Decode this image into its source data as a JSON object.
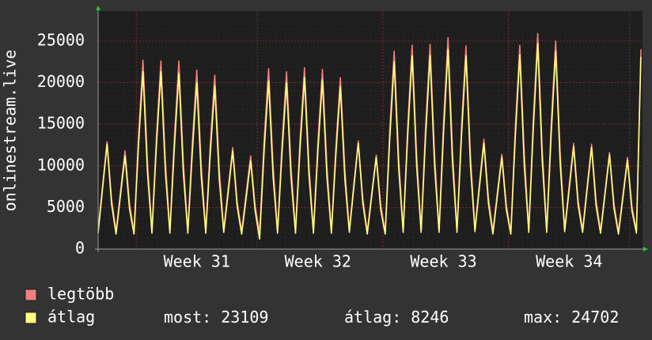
{
  "chart_data": {
    "type": "line",
    "y_label": "onlinestream.live",
    "categories": [
      null,
      null,
      null,
      null,
      null,
      null,
      null,
      null,
      null,
      null,
      null,
      null,
      null,
      null,
      null,
      null,
      null,
      null,
      null,
      null,
      null,
      null,
      "Week 31",
      null,
      null,
      null,
      null,
      null,
      null,
      null,
      null,
      null,
      null,
      null,
      null,
      null,
      null,
      null,
      null,
      null,
      null,
      null,
      null,
      null,
      null,
      null,
      null,
      null,
      null,
      "Week 32",
      null,
      null,
      null,
      null,
      null,
      null,
      null,
      null,
      null,
      null,
      null,
      null,
      null,
      null,
      null,
      null,
      null,
      null,
      null,
      null,
      null,
      null,
      null,
      null,
      null,
      null,
      null,
      "Week 33",
      null,
      null,
      null,
      null,
      null,
      null,
      null,
      null,
      null,
      null,
      null,
      null,
      null,
      null,
      null,
      null,
      null,
      null,
      null,
      null,
      null,
      null,
      null,
      null,
      null,
      null,
      null,
      "Week 34",
      null,
      null,
      null,
      null,
      null,
      null,
      null,
      null,
      null,
      null,
      null,
      null,
      null,
      null,
      null,
      null
    ],
    "series": [
      {
        "name": "legtöbb",
        "color": "#f47f7f",
        "values": [
          2300,
          7700,
          12900,
          6000,
          2100,
          7000,
          11800,
          5500,
          2000,
          13500,
          22700,
          10500,
          2200,
          13500,
          22600,
          10500,
          2200,
          13400,
          22600,
          10400,
          2200,
          12800,
          21500,
          10000,
          2200,
          12500,
          20900,
          9700,
          2300,
          7300,
          12200,
          5700,
          2100,
          6700,
          11200,
          5200,
          2000,
          13000,
          21700,
          10100,
          2200,
          12700,
          21300,
          9900,
          2200,
          13000,
          21800,
          10100,
          2200,
          12900,
          21600,
          10000,
          2200,
          12300,
          20600,
          9600,
          2300,
          7800,
          13000,
          6100,
          2100,
          6800,
          11300,
          5300,
          2000,
          14200,
          23800,
          11000,
          2300,
          14600,
          24500,
          11400,
          2300,
          14700,
          24600,
          11400,
          2300,
          15200,
          25400,
          11800,
          2300,
          14600,
          24400,
          11300,
          2400,
          7900,
          13200,
          6200,
          2100,
          6800,
          11400,
          5300,
          2000,
          14600,
          24500,
          11400,
          2300,
          15500,
          25900,
          12000,
          2300,
          15000,
          25000,
          11600,
          2400,
          7600,
          12700,
          5900,
          2300,
          7500,
          12600,
          5900,
          2200,
          6900,
          11600,
          5400,
          2100,
          6600,
          11000,
          5100,
          2200,
          24000
        ]
      },
      {
        "name": "átlag",
        "color": "#ffff80",
        "values": [
          1900,
          7300,
          12600,
          5400,
          1800,
          6500,
          11200,
          4800,
          1800,
          12400,
          21300,
          9200,
          1900,
          12400,
          21300,
          9200,
          1900,
          12200,
          21100,
          9100,
          1900,
          11600,
          20000,
          8600,
          1900,
          11400,
          19600,
          8400,
          2000,
          6800,
          11800,
          5100,
          1800,
          6100,
          10600,
          4600,
          1200,
          11700,
          20200,
          8700,
          1900,
          11600,
          20000,
          8600,
          1900,
          11900,
          20600,
          8900,
          1900,
          11800,
          20300,
          8700,
          1900,
          11300,
          19500,
          8400,
          2000,
          7400,
          12700,
          5500,
          1800,
          6400,
          11000,
          4700,
          1800,
          13100,
          22500,
          9700,
          2000,
          13500,
          23200,
          10000,
          2000,
          13500,
          23200,
          10000,
          2000,
          13900,
          24000,
          10300,
          2000,
          13500,
          23200,
          10000,
          2100,
          7400,
          12700,
          5500,
          1800,
          6400,
          11000,
          4700,
          1800,
          13500,
          23300,
          10000,
          2000,
          14300,
          24702,
          10600,
          2000,
          13800,
          23800,
          10200,
          2100,
          7100,
          12300,
          5300,
          2000,
          7100,
          12200,
          5200,
          1900,
          6600,
          11300,
          4900,
          1800,
          6200,
          10700,
          4600,
          1900,
          23109
        ]
      }
    ],
    "stats": [
      {
        "label": "most:",
        "value": 23109
      },
      {
        "label": "átlag:",
        "value": 8246
      },
      {
        "label": "max:",
        "value": 24702
      }
    ],
    "ylim": [
      0,
      28600
    ],
    "yticks": [
      0,
      5000,
      10000,
      15000,
      20000,
      25000
    ],
    "grid": true
  }
}
